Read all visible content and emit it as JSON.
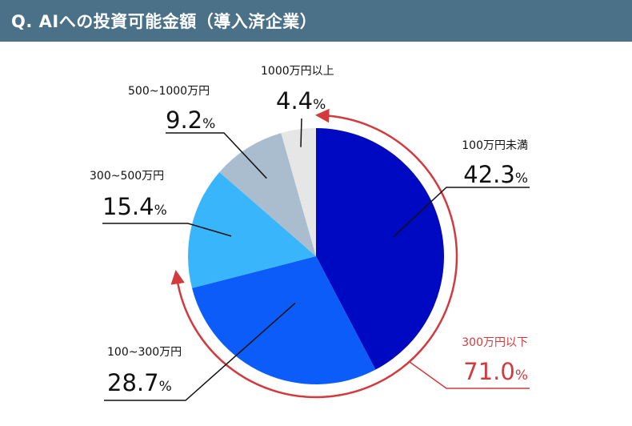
{
  "header": {
    "title": "Q. AIへの投資可能金額（導入済企業）"
  },
  "chart_data": {
    "type": "pie",
    "categories": [
      "100万円未満",
      "100~300万円",
      "300~500万円",
      "500~1000万円",
      "1000万円以上"
    ],
    "values": [
      42.3,
      28.7,
      15.4,
      9.2,
      4.4
    ],
    "display_values": [
      "42.3",
      "28.7",
      "15.4",
      "9.2",
      "4.4"
    ],
    "unit": "%",
    "colors": [
      "#0009c2",
      "#0b5cf8",
      "#39b5fb",
      "#a9bdcf",
      "#e6e6e6"
    ],
    "annotation": {
      "label": "300万円以下",
      "value": "71.0",
      "unit": "%",
      "color": "#d23a3e"
    }
  }
}
